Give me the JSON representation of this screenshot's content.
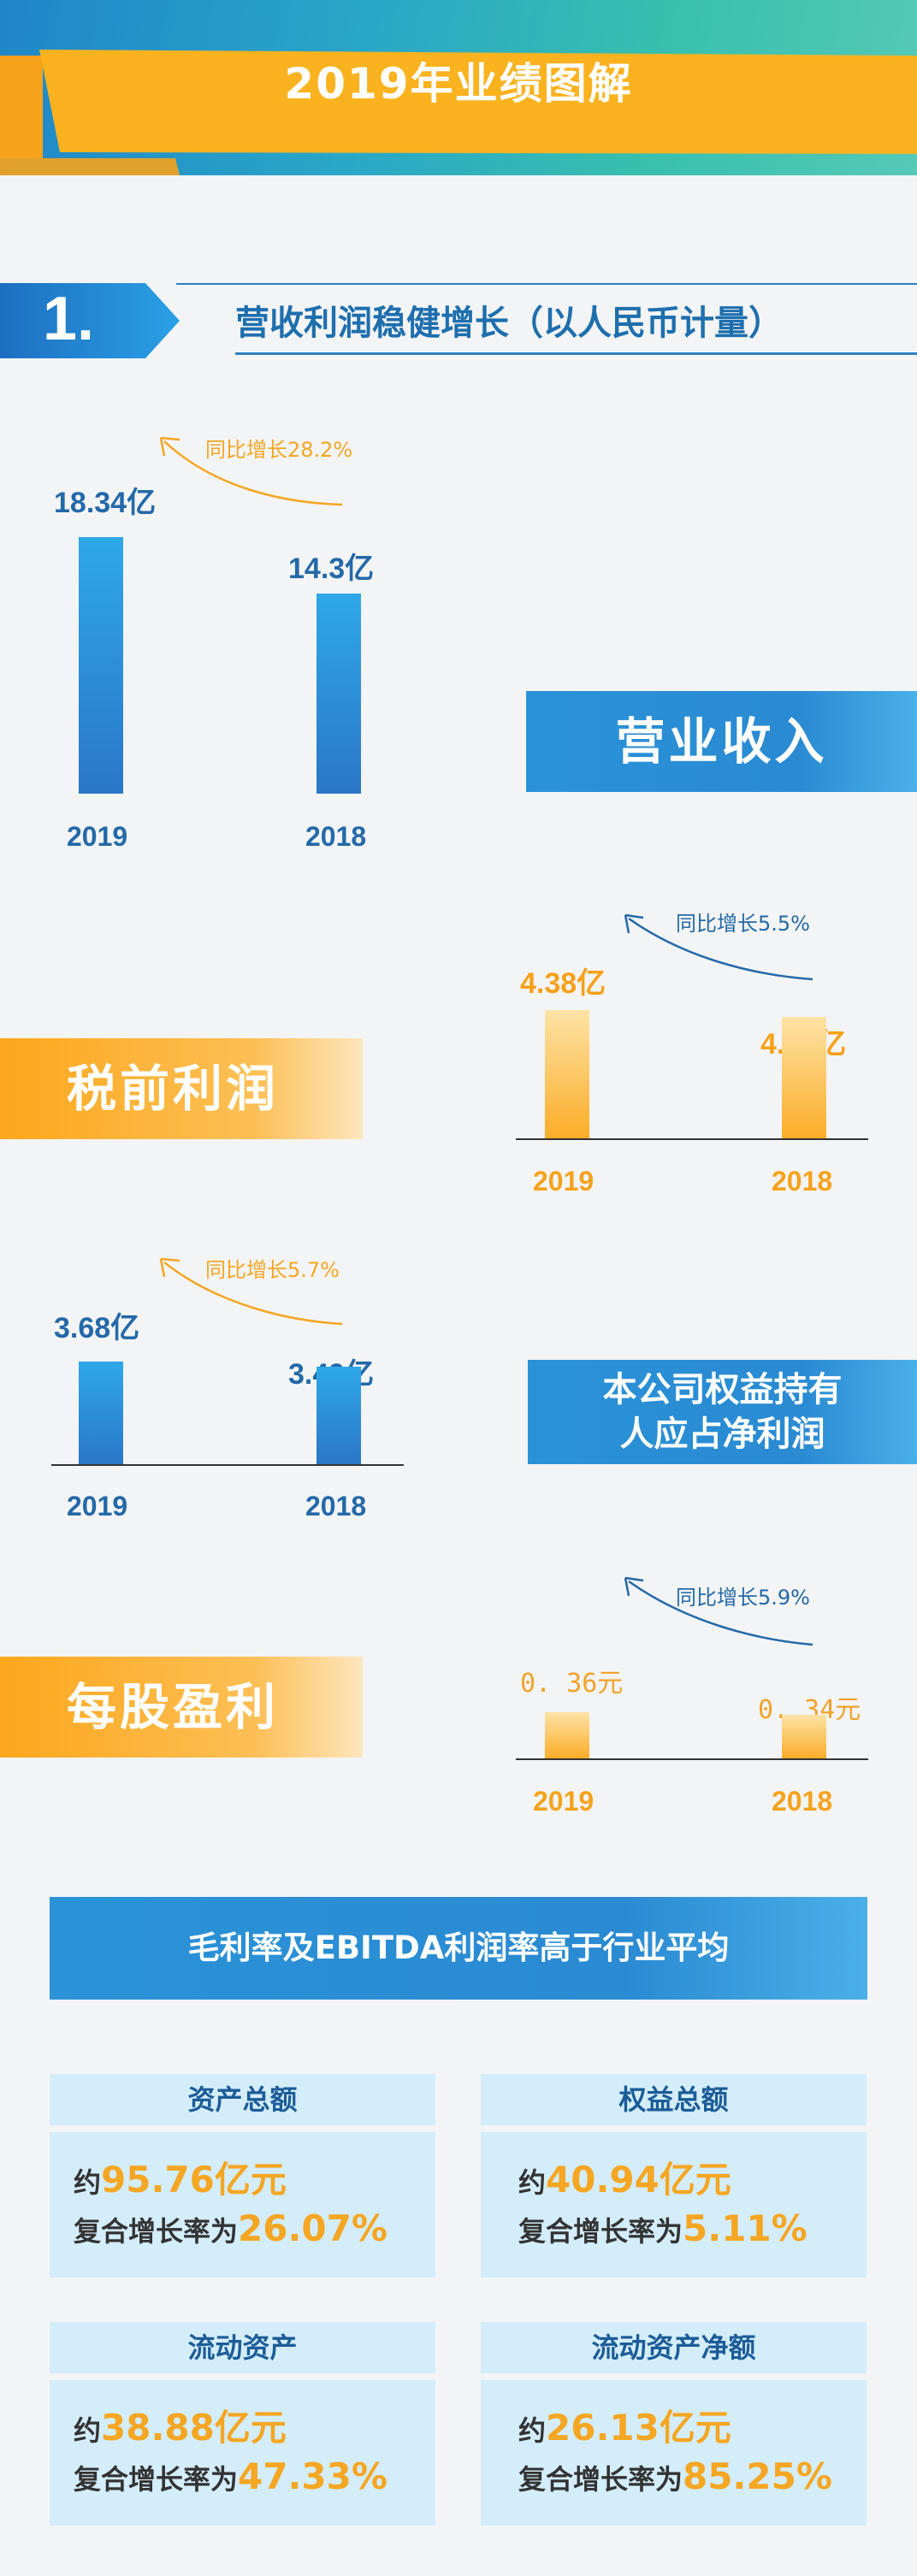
{
  "title": "2019年业绩图解",
  "section": {
    "number": "1.",
    "title": "营收利润稳健增长（以人民币计量）"
  },
  "chart_data": [
    {
      "type": "bar",
      "title": "营业收入",
      "categories": [
        "2019",
        "2018"
      ],
      "values": [
        18.34,
        14.3
      ],
      "value_labels": [
        "18.34亿",
        "14.3亿"
      ],
      "yoy": "同比增长28.2%",
      "color": "#2b8fd6"
    },
    {
      "type": "bar",
      "title": "税前利润",
      "categories": [
        "2019",
        "2018"
      ],
      "values": [
        4.38,
        4.15
      ],
      "value_labels": [
        "4.38亿",
        "4.15亿"
      ],
      "yoy": "同比增长5.5%",
      "color": "#fcad28"
    },
    {
      "type": "bar",
      "title": "本公司权益持有人应占净利润",
      "categories": [
        "2019",
        "2018"
      ],
      "values": [
        3.68,
        3.49
      ],
      "value_labels": [
        "3.68亿",
        "3.49亿"
      ],
      "yoy": "同比增长5.7%",
      "color": "#2b8fd6"
    },
    {
      "type": "bar",
      "title": "每股盈利",
      "categories": [
        "2019",
        "2018"
      ],
      "values": [
        0.36,
        0.34
      ],
      "value_labels": [
        "0. 36元",
        "0. 34元"
      ],
      "yoy": "同比增长5.9%",
      "color": "#fcad28"
    }
  ],
  "chart_titles": {
    "net_profit_line1": "本公司权益持有",
    "net_profit_line2": "人应占净利润"
  },
  "banner": "毛利率及EBITDA利润率高于行业平均",
  "cards": [
    {
      "title": "资产总额",
      "prefix": "约",
      "amount": "95.76亿元",
      "rate_label": "复合增长率为",
      "rate": "26.07%"
    },
    {
      "title": "权益总额",
      "prefix": "约",
      "amount": "40.94亿元",
      "rate_label": "复合增长率为",
      "rate": "5.11%"
    },
    {
      "title": "流动资产",
      "prefix": "约",
      "amount": "38.88亿元",
      "rate_label": "复合增长率为",
      "rate": "47.33%"
    },
    {
      "title": "流动资产净额",
      "prefix": "约",
      "amount": "26.13亿元",
      "rate_label": "复合增长率为",
      "rate": "85.25%"
    }
  ]
}
